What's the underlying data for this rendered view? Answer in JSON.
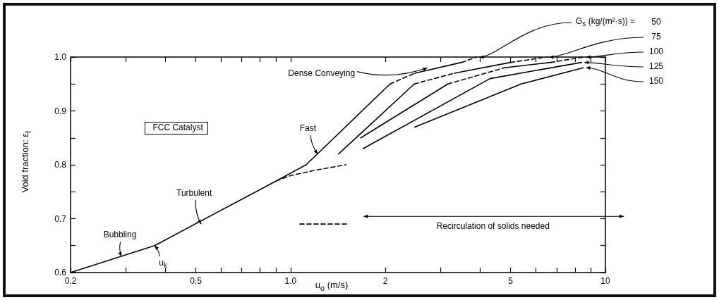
{
  "chart_data": {
    "type": "line",
    "xlabel": "u$_{o}$ (m/s)",
    "ylabel": "Void fraction: ε$_{f}$",
    "legend_title": "G$_{s}$ (kg/(m²·s)) =",
    "log": "x",
    "marker": "none",
    "line_style": "solid",
    "xlim": [
      0.2,
      10
    ],
    "ylim": [
      0.6,
      1.0
    ],
    "xticks": [
      0.2,
      {
        "value": 0.3,
        "label": null
      },
      {
        "value": 0.4,
        "label": null
      },
      0.5,
      {
        "value": 0.6,
        "label": null
      },
      {
        "value": 0.7,
        "label": null
      },
      {
        "value": 0.8,
        "label": null
      },
      {
        "value": 0.9,
        "label": null
      },
      {
        "value": 1,
        "label": "1.0"
      },
      2,
      {
        "value": 3,
        "label": null
      },
      {
        "value": 4,
        "label": null
      },
      5,
      {
        "value": 6,
        "label": null
      },
      {
        "value": 7,
        "label": null
      },
      {
        "value": 8,
        "label": null
      },
      {
        "value": 9,
        "label": null
      },
      10
    ],
    "yticks": [
      0.6,
      {
        "value": 0.65,
        "label": null
      },
      0.7,
      {
        "value": 0.75,
        "label": null
      },
      0.8,
      {
        "value": 0.85,
        "label": null
      },
      0.9,
      {
        "value": 0.95,
        "label": null
      },
      {
        "value": 1,
        "label": "1.0"
      }
    ],
    "series": [
      {
        "color": "#000000",
        "x": [
          0.2,
          0.37,
          0.9,
          1.12,
          2.07
        ],
        "values": [
          0.6,
          0.65,
          0.77,
          0.8,
          0.95
        ]
      },
      {
        "color": "#000000",
        "line_style": "dashed",
        "x": [
          0.9,
          1.0,
          1.2,
          1.5
        ],
        "values": [
          0.77,
          0.78,
          0.79,
          0.8
        ]
      },
      {
        "color": "#000000",
        "line_style": "dashed",
        "x": [
          2.07,
          2.48
        ],
        "values": [
          0.95,
          0.97
        ]
      },
      {
        "color": "#000000",
        "x": [
          2.48,
          3.49
        ],
        "values": [
          0.97,
          0.99
        ]
      },
      {
        "name": "50",
        "color": "#000000",
        "line_style": "dashed",
        "x": [
          3.49,
          3.9
        ],
        "values": [
          0.99,
          1.0
        ]
      },
      {
        "color": "#000000",
        "x": [
          1.42,
          2.47
        ],
        "values": [
          0.82,
          0.95
        ]
      },
      {
        "color": "#000000",
        "line_style": "dashed",
        "x": [
          2.47,
          3.31
        ],
        "values": [
          0.95,
          0.97
        ]
      },
      {
        "color": "#000000",
        "x": [
          3.31,
          5
        ],
        "values": [
          0.97,
          0.99
        ]
      },
      {
        "name": "75",
        "color": "#000000",
        "line_style": "dashed",
        "x": [
          5,
          6.5
        ],
        "values": [
          0.99,
          1.0
        ]
      },
      {
        "color": "#000000",
        "x": [
          1.67,
          3.16
        ],
        "values": [
          0.85,
          0.95
        ]
      },
      {
        "color": "#000000",
        "line_style": "dashed",
        "x": [
          3.16,
          4.77
        ],
        "values": [
          0.95,
          0.98
        ]
      },
      {
        "color": "#000000",
        "x": [
          4.77,
          6.7
        ],
        "values": [
          0.98,
          0.99
        ]
      },
      {
        "name": "100",
        "color": "#000000",
        "line_style": "dashed",
        "x": [
          6.7,
          8.5
        ],
        "values": [
          0.99,
          1.0
        ]
      },
      {
        "name": "125",
        "color": "#000000",
        "x": [
          1.7,
          4.3,
          8.4
        ],
        "values": [
          0.83,
          0.96,
          0.99
        ]
      },
      {
        "name": "150",
        "color": "#000000",
        "x": [
          2.48,
          5.4,
          8.5
        ],
        "values": [
          0.87,
          0.95,
          0.98
        ]
      },
      {
        "color": "#000000",
        "line_style": "dashed",
        "x": [
          1.07,
          1.53
        ],
        "values": [
          0.69,
          0.69
        ]
      }
    ],
    "annotations": [
      {
        "text": "Bubbling",
        "x": 0.29,
        "y": 0.63
      },
      {
        "text": "u$_{k}$",
        "x": 0.37,
        "y": 0.65
      },
      {
        "text": "Turbulent",
        "x": 0.52,
        "y": 0.69
      },
      {
        "text": "Fast",
        "x": 1.22,
        "y": 0.82
      },
      {
        "text": "Dense Conveying",
        "x": 2.72,
        "y": 0.98
      },
      "FCC Catalyst",
      "Recirculation of solids needed"
    ]
  }
}
